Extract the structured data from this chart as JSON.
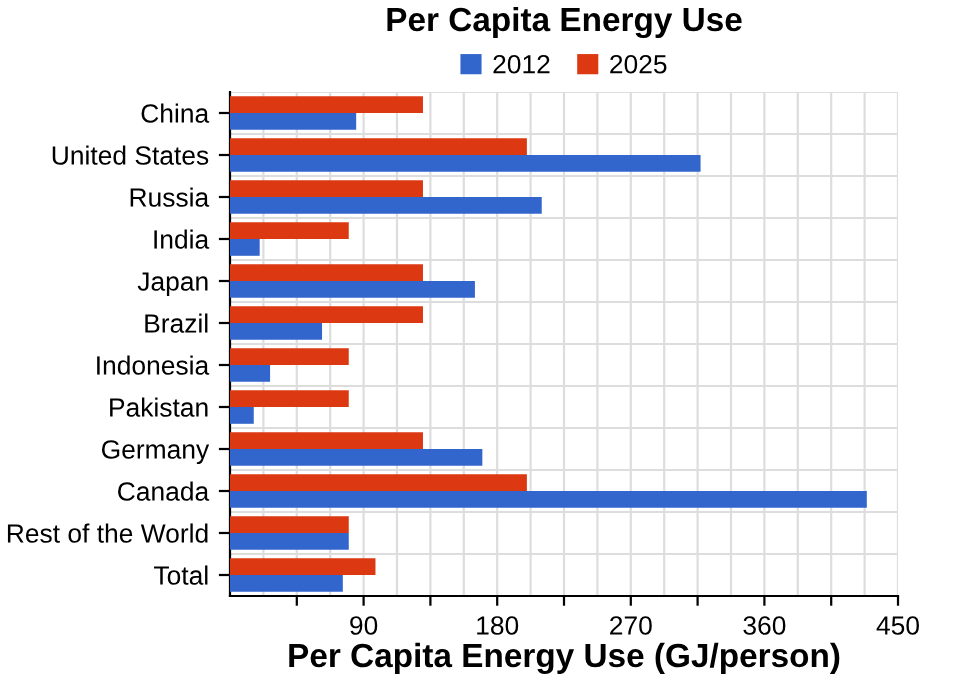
{
  "chart_data": {
    "type": "bar",
    "orientation": "horizontal",
    "title": "Per Capita Energy Use",
    "xlabel": "Per Capita Energy Use (GJ/person)",
    "categories": [
      "China",
      "United States",
      "Russia",
      "India",
      "Japan",
      "Brazil",
      "Indonesia",
      "Pakistan",
      "Germany",
      "Canada",
      "Rest of the World",
      "Total"
    ],
    "series": [
      {
        "name": "2012",
        "color": "#3366cc",
        "values": [
          85,
          317,
          210,
          20,
          165,
          62,
          27,
          16,
          170,
          429,
          80,
          76
        ]
      },
      {
        "name": "2025",
        "color": "#dc3912",
        "values": [
          130,
          200,
          130,
          80,
          130,
          130,
          80,
          80,
          130,
          200,
          80,
          98
        ]
      }
    ],
    "xlim": [
      0,
      450
    ],
    "xticks": [
      {
        "value": 45,
        "label": null
      },
      90,
      {
        "value": 135,
        "label": null
      },
      180,
      {
        "value": 225,
        "label": null
      },
      270,
      {
        "value": 315,
        "label": null
      },
      360,
      {
        "value": 405,
        "label": null
      },
      450
    ],
    "grid": true,
    "legend": "top"
  }
}
